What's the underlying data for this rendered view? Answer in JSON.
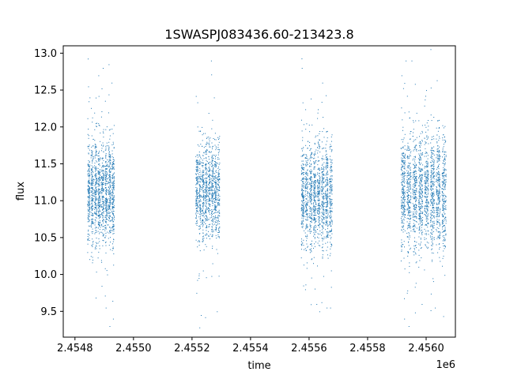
{
  "chart_data": {
    "type": "scatter",
    "title": "1SWASPJ083436.60-213423.8",
    "xlabel": "time",
    "ylabel": "flux",
    "x_offset_label": "1e6",
    "xlim": [
      2454760,
      2456100
    ],
    "ylim": [
      9.15,
      13.1
    ],
    "x_ticks": [
      2454800,
      2455000,
      2455200,
      2455400,
      2455600,
      2455800,
      2456000
    ],
    "x_tick_labels": [
      "2.4548",
      "2.4550",
      "2.4552",
      "2.4554",
      "2.4556",
      "2.4558",
      "2.4560"
    ],
    "y_ticks": [
      9.5,
      10.0,
      10.5,
      11.0,
      11.5,
      12.0,
      12.5,
      13.0
    ],
    "y_tick_labels": [
      "9.5",
      "10.0",
      "10.5",
      "11.0",
      "11.5",
      "12.0",
      "12.5",
      "13.0"
    ],
    "grid": false,
    "marker_color": "#1f77b4",
    "series": [
      {
        "segments": [
          {
            "x_range": [
              2454840,
              2454935
            ],
            "center": 11.1,
            "spread": 0.35,
            "count": 1400,
            "outliers": [
              [
                2454845,
                12.55
              ],
              [
                2454850,
                12.4
              ],
              [
                2454860,
                10.2
              ],
              [
                2454880,
                12.7
              ],
              [
                2454895,
                12.8
              ],
              [
                2454905,
                9.55
              ],
              [
                2454910,
                10.0
              ],
              [
                2454915,
                12.85
              ],
              [
                2454918,
                9.3
              ],
              [
                2454925,
                12.6
              ],
              [
                2454930,
                9.4
              ]
            ]
          },
          {
            "x_range": [
              2455210,
              2455295
            ],
            "center": 11.1,
            "spread": 0.33,
            "count": 1100,
            "outliers": [
              [
                2455215,
                9.75
              ],
              [
                2455230,
                9.45
              ],
              [
                2455245,
                9.42
              ],
              [
                2455265,
                12.9
              ],
              [
                2455275,
                12.4
              ],
              [
                2455285,
                9.5
              ]
            ]
          },
          {
            "x_range": [
              2455570,
              2455680
            ],
            "center": 11.05,
            "spread": 0.36,
            "count": 1400,
            "outliers": [
              [
                2455575,
                12.8
              ],
              [
                2455580,
                9.85
              ],
              [
                2455625,
                9.6
              ],
              [
                2455635,
                9.5
              ],
              [
                2455645,
                12.6
              ],
              [
                2455660,
                9.55
              ]
            ]
          },
          {
            "x_range": [
              2455910,
              2456070
            ],
            "center": 11.1,
            "spread": 0.4,
            "count": 1900,
            "outliers": [
              [
                2455925,
                9.4
              ],
              [
                2455930,
                12.9
              ],
              [
                2455940,
                9.3
              ],
              [
                2455950,
                12.9
              ],
              [
                2455985,
                9.6
              ],
              [
                2456000,
                12.5
              ],
              [
                2456030,
                9.55
              ]
            ]
          }
        ]
      }
    ]
  }
}
